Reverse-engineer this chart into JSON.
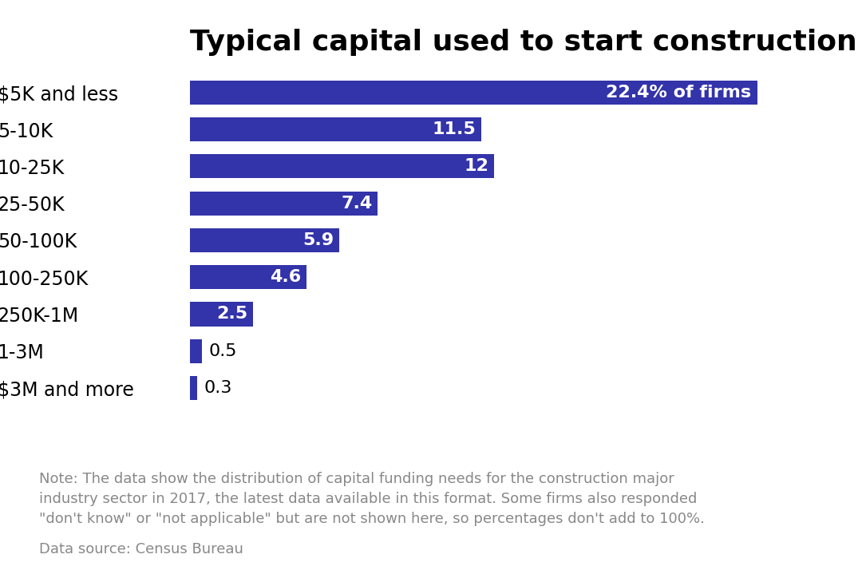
{
  "title": "Typical capital used to start construction businesses",
  "categories": [
    "$5K and less",
    "5-10K",
    "10-25K",
    "25-50K",
    "50-100K",
    "100-250K",
    "250K-1M",
    "1-3M",
    "$3M and more"
  ],
  "values": [
    22.4,
    11.5,
    12.0,
    7.4,
    5.9,
    4.6,
    2.5,
    0.5,
    0.3
  ],
  "bar_color": "#3333AA",
  "background_color": "#FFFFFF",
  "title_fontsize": 26,
  "label_fontsize": 17,
  "value_fontsize": 16,
  "note_text": "Note: The data show the distribution of capital funding needs for the construction major\nindustry sector in 2017, the latest data available in this format. Some firms also responded\n\"don't know\" or \"not applicable\" but are not shown here, so percentages don't add to 100%.",
  "source_text": "Data source: Census Bureau",
  "first_bar_label": "22.4% of firms",
  "note_color": "#888888",
  "source_color": "#888888",
  "xlim": [
    0,
    25.5
  ]
}
